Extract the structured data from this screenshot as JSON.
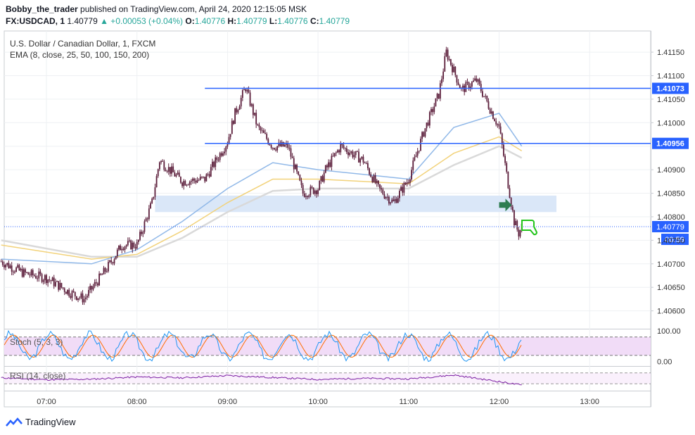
{
  "header": {
    "publisher": "Bobby_the_trader",
    "published_text": "published on TradingView.com, April 24, 2020 12:15:05 MSK",
    "symbol": "FX:USDCAD, 1",
    "last": "1.40779",
    "change": "▲ +0.00053 (+0.04%)",
    "o_label": "O:",
    "o": "1.40776",
    "h_label": "H:",
    "h": "1.40779",
    "l_label": "L:",
    "l": "1.40776",
    "c_label": "C:",
    "c": "1.40779"
  },
  "legend": {
    "title": "U.S. Dollar / Canadian Dollar, 1, FXCM",
    "ema": "EMA (8, close, 25, 50, 100, 150, 200)"
  },
  "colors": {
    "candle": "#5b1d3a",
    "hline": "#2962ff",
    "zone": "#d6e4f7",
    "ema_fast": "#90b8e8",
    "ema_mid": "#f2d27a",
    "ema_slow": "#d9d9d9",
    "stoch_k": "#2196f3",
    "stoch_d": "#ff6d00",
    "rsi": "#7b1fa2",
    "osc_band": "#f1dcf7"
  },
  "chart_data": [
    {
      "type": "candlestick",
      "title": "U.S. Dollar / Canadian Dollar, 1, FXCM",
      "x_ticks": [
        "07:00",
        "08:00",
        "09:00",
        "10:00",
        "11:00",
        "12:00",
        "13:00"
      ],
      "y_ticks": [
        1.4115,
        1.411,
        1.4105,
        1.41,
        1.4095,
        1.409,
        1.4085,
        1.408,
        1.4075,
        1.407,
        1.4065,
        1.406
      ],
      "y_tick_labels": [
        "1.41150",
        "1.41100",
        "1.41050",
        "1.41000",
        "1.40950",
        "1.40900",
        "1.40850",
        "1.40800",
        "1.40750",
        "1.40700",
        "1.40650",
        "1.40600"
      ],
      "ylim": [
        1.40565,
        1.41195
      ],
      "price_path": [
        [
          "06:30",
          1.40705
        ],
        [
          "06:45",
          1.4068
        ],
        [
          "07:00",
          1.4067
        ],
        [
          "07:15",
          1.4064
        ],
        [
          "07:25",
          1.40625
        ],
        [
          "07:40",
          1.4069
        ],
        [
          "07:50",
          1.4074
        ],
        [
          "08:00",
          1.4074
        ],
        [
          "08:10",
          1.4083
        ],
        [
          "08:15",
          1.4092
        ],
        [
          "08:30",
          1.40875
        ],
        [
          "08:45",
          1.4088
        ],
        [
          "09:00",
          1.4096
        ],
        [
          "09:05",
          1.4102
        ],
        [
          "09:12",
          1.41075
        ],
        [
          "09:20",
          1.4099
        ],
        [
          "09:30",
          1.4095
        ],
        [
          "09:40",
          1.4095
        ],
        [
          "09:50",
          1.4085
        ],
        [
          "10:00",
          1.4086
        ],
        [
          "10:05",
          1.409
        ],
        [
          "10:15",
          1.4095
        ],
        [
          "10:30",
          1.4092
        ],
        [
          "10:40",
          1.4086
        ],
        [
          "10:50",
          1.4083
        ],
        [
          "11:00",
          1.4088
        ],
        [
          "11:10",
          1.4098
        ],
        [
          "11:20",
          1.4106
        ],
        [
          "11:25",
          1.4115
        ],
        [
          "11:35",
          1.4107
        ],
        [
          "11:45",
          1.4109
        ],
        [
          "12:00",
          1.4099
        ],
        [
          "12:05",
          1.4089
        ],
        [
          "12:10",
          1.4079
        ],
        [
          "12:13",
          1.40765
        ],
        [
          "12:15",
          1.40779
        ]
      ],
      "horizontal_lines": [
        {
          "value": 1.41073,
          "label": "1.41073"
        },
        {
          "value": 1.40956,
          "label": "1.40956"
        }
      ],
      "zone": {
        "from": 1.4081,
        "to": 1.40845
      },
      "last_price": {
        "value": 1.40779,
        "label": "1.40779",
        "countdown": "00:59"
      },
      "ema_fast": [
        [
          "06:30",
          1.4071
        ],
        [
          "07:30",
          1.407
        ],
        [
          "08:00",
          1.4073
        ],
        [
          "08:30",
          1.4079
        ],
        [
          "09:00",
          1.4086
        ],
        [
          "09:30",
          1.40915
        ],
        [
          "10:00",
          1.409
        ],
        [
          "10:30",
          1.4089
        ],
        [
          "11:00",
          1.4088
        ],
        [
          "11:30",
          1.4099
        ],
        [
          "12:00",
          1.4102
        ],
        [
          "12:15",
          1.4095
        ]
      ],
      "ema_mid": [
        [
          "06:30",
          1.4074
        ],
        [
          "07:30",
          1.4071
        ],
        [
          "08:00",
          1.4072
        ],
        [
          "08:30",
          1.4077
        ],
        [
          "09:00",
          1.4083
        ],
        [
          "09:30",
          1.4088
        ],
        [
          "10:00",
          1.4088
        ],
        [
          "10:30",
          1.40875
        ],
        [
          "11:00",
          1.4087
        ],
        [
          "11:30",
          1.40935
        ],
        [
          "12:00",
          1.4097
        ],
        [
          "12:15",
          1.4094
        ]
      ],
      "ema_slow": [
        [
          "06:30",
          1.4075
        ],
        [
          "07:30",
          1.40715
        ],
        [
          "08:00",
          1.40715
        ],
        [
          "08:30",
          1.40755
        ],
        [
          "09:00",
          1.4081
        ],
        [
          "09:30",
          1.40855
        ],
        [
          "10:00",
          1.4086
        ],
        [
          "10:30",
          1.4086
        ],
        [
          "11:00",
          1.4086
        ],
        [
          "11:30",
          1.4091
        ],
        [
          "12:00",
          1.4095
        ],
        [
          "12:15",
          1.40925
        ]
      ]
    },
    {
      "type": "line",
      "title": "Stoch (5, 3, 3)",
      "y_ticks": [
        100,
        0
      ],
      "y_tick_labels": [
        "100.00",
        "0.00"
      ],
      "band": [
        20,
        80
      ],
      "ylim": [
        -10,
        100
      ]
    },
    {
      "type": "line",
      "title": "RSI (14, close)",
      "ylim": [
        10,
        90
      ],
      "band": [
        30,
        70
      ],
      "values": [
        [
          "06:30",
          52
        ],
        [
          "07:00",
          45
        ],
        [
          "07:30",
          47
        ],
        [
          "08:00",
          55
        ],
        [
          "08:30",
          52
        ],
        [
          "09:00",
          60
        ],
        [
          "09:30",
          53
        ],
        [
          "10:00",
          46
        ],
        [
          "10:30",
          50
        ],
        [
          "11:00",
          48
        ],
        [
          "11:30",
          62
        ],
        [
          "12:00",
          38
        ],
        [
          "12:15",
          25
        ]
      ]
    }
  ],
  "footer": {
    "brand": "TradingView"
  }
}
